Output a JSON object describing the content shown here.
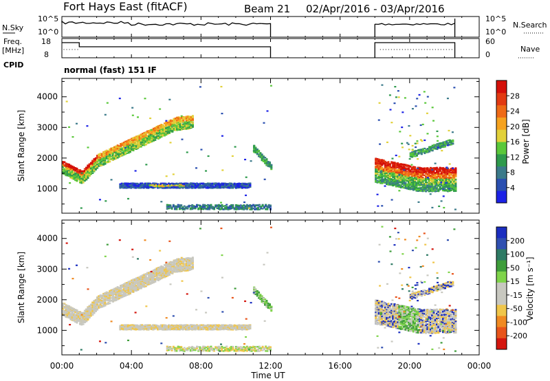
{
  "header": {
    "title": "Fort Hays East (fitACF)",
    "beam": "Beam 21",
    "date_range": "02/Apr/2016 - 03/Apr/2016"
  },
  "nsky_panel": {
    "left_label": "N.Sky",
    "left_ticks": [
      "10^5",
      "10^0"
    ],
    "right_ticks": [
      "10^5",
      "10^0"
    ],
    "right_label": "N.Search"
  },
  "freq_panel": {
    "left_label": "Freq.",
    "left_unit": "[MHz]",
    "left_ticks": [
      "18",
      "8"
    ],
    "right_ticks": [
      "60",
      "0"
    ],
    "right_label": "Nave"
  },
  "cpid": {
    "label": "CPID",
    "mode": "normal (fast) 151 IF"
  },
  "colors": {
    "power_scale": [
      "#1c22e6",
      "#2a4fb0",
      "#3b7a8a",
      "#2e9a4c",
      "#5ac83a",
      "#e2d13a",
      "#f5a21f",
      "#ee6a16",
      "#e23a12",
      "#d4100a"
    ],
    "velocity_scale": [
      "#1b2ec0",
      "#2f4fb0",
      "#2e7a64",
      "#3e9d3a",
      "#7fd44a",
      "#c8c8c0",
      "#c8c8c0",
      "#f0c64a",
      "#f08a22",
      "#e8541a",
      "#d4160e"
    ]
  },
  "chart_data": [
    {
      "type": "heatmap",
      "panel": "power",
      "ylabel": "Slant Range [km]",
      "yticks": [
        1000,
        2000,
        3000,
        4000
      ],
      "ylim": [
        200,
        4600
      ],
      "xlim_hours": [
        0,
        24
      ],
      "colorbar": {
        "label": "Power [dB]",
        "ticks": [
          "28",
          "24",
          "20",
          "16",
          "12",
          "8",
          "4"
        ],
        "range": [
          0,
          32
        ]
      }
    },
    {
      "type": "heatmap",
      "panel": "velocity",
      "ylabel": "Slant Range [km]",
      "yticks": [
        1000,
        2000,
        3000,
        4000
      ],
      "ylim": [
        200,
        4600
      ],
      "xlim_hours": [
        0,
        24
      ],
      "colorbar": {
        "label": "Velocity [m s⁻¹]",
        "ticks": [
          "200",
          "100",
          "50",
          "15",
          "-15",
          "-50",
          "-100",
          "-200"
        ]
      }
    }
  ],
  "time_axis": {
    "ticks": [
      "00:00",
      "04:00",
      "08:00",
      "12:00",
      "16:00",
      "20:00",
      "00:00"
    ],
    "label": "Time UT"
  }
}
